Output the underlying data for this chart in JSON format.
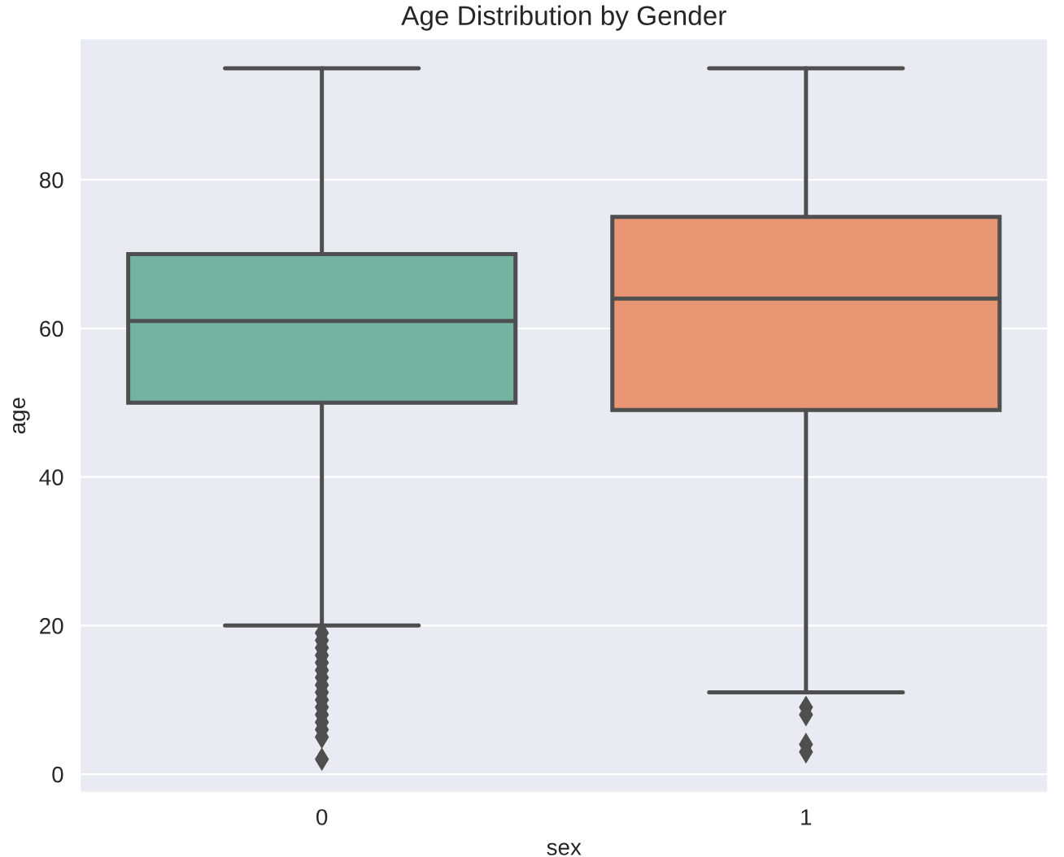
{
  "chart_data": {
    "type": "box",
    "title": "Age Distribution by Gender",
    "xlabel": "sex",
    "ylabel": "age",
    "categories": [
      "0",
      "1"
    ],
    "colors": [
      "#73b3a0",
      "#e89673"
    ],
    "boxes": [
      {
        "low": 20,
        "q1": 50,
        "median": 61,
        "q3": 70,
        "high": 95,
        "outliers": [
          19,
          18,
          17,
          16,
          15,
          14,
          13,
          12,
          11,
          10,
          9,
          8,
          7,
          6,
          5,
          2
        ]
      },
      {
        "low": 11,
        "q1": 49,
        "median": 64,
        "q3": 75,
        "high": 95,
        "outliers": [
          9,
          8,
          4,
          3
        ]
      }
    ],
    "ylim": [
      -2.5,
      99
    ],
    "yticks": [
      0,
      20,
      40,
      60,
      80
    ],
    "grid": "y"
  }
}
